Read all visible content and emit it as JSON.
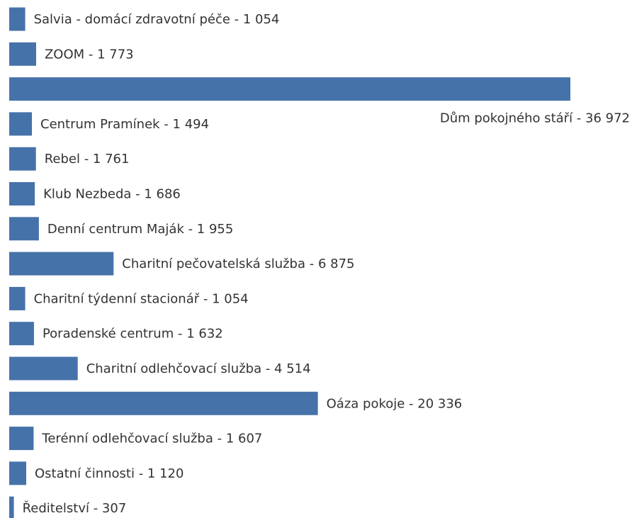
{
  "chart_data": {
    "type": "bar",
    "orientation": "horizontal",
    "color": "#4672aa",
    "categories": [
      "Salvia - domácí zdravotní péče - 1 054",
      "ZOOM - 1 773",
      "Dům pokojného stáří - 36 972",
      "Centrum Pramínek - 1 494",
      "Rebel - 1 761",
      "Klub Nezbeda - 1 686",
      "Denní centrum Maják - 1 955",
      "Charitní pečovatelská služba - 6 875",
      "Charitní týdenní stacionář - 1 054",
      "Poradenské centrum - 1 632",
      "Charitní odlehčovací služba - 4 514",
      "Oáza pokoje - 20 336",
      "Terénní odlehčovací služba - 1 607",
      "Ostatní činnosti - 1 120",
      "Ředitelství - 307"
    ],
    "values": [
      1054,
      1773,
      36972,
      1494,
      1761,
      1686,
      1955,
      6875,
      1054,
      1632,
      4514,
      20336,
      1607,
      1120,
      307
    ]
  }
}
